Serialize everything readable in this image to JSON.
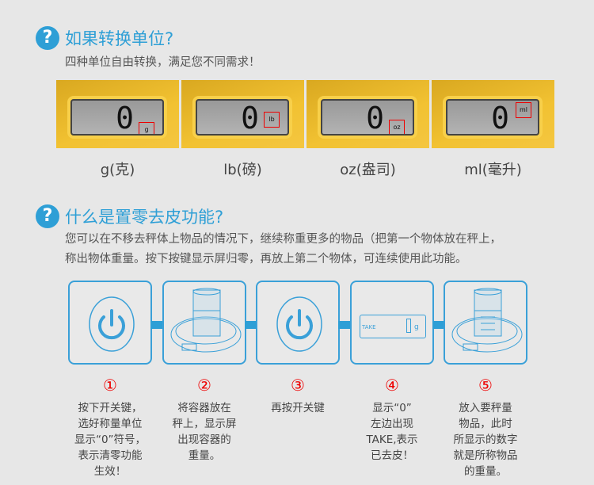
{
  "section1": {
    "icon": "question-icon",
    "title": "如果转换单位?",
    "subtitle": "四种单位自由转换，满足您不同需求！",
    "panels": [
      {
        "digit": "0",
        "unit": "g",
        "label": "g(克)"
      },
      {
        "digit": "0",
        "unit": "lb",
        "label": "lb(磅)"
      },
      {
        "digit": "0",
        "unit": "oz",
        "label": "oz(盎司)"
      },
      {
        "digit": "0",
        "unit": "ml",
        "label": "ml(毫升)"
      }
    ]
  },
  "section2": {
    "icon": "question-icon",
    "title": "什么是置零去皮功能?",
    "lines": [
      "您可以在不移去秤体上物品的情况下，继续称重更多的物品（把第一个物体放在秤上，",
      "称出物体重量。按下按键显示屏归零，再放上第二个物体，可连续使用此功能。"
    ],
    "lcd_text": "TAKE",
    "lcd_unit": "g",
    "steps": [
      {
        "num": "①",
        "icon": "power-icon",
        "text": "按下开关键，\n选好称量单位\n显示“0”符号，\n表示清零功能\n生效！"
      },
      {
        "num": "②",
        "icon": "scale-with-container-icon",
        "text": "将容器放在\n秤上，显示屏\n出现容器的\n重量。"
      },
      {
        "num": "③",
        "icon": "power-icon",
        "text": "再按开关键"
      },
      {
        "num": "④",
        "icon": "lcd-display-icon",
        "text": "显示“0”\n左边出现\nTAKE,表示\n已去皮！"
      },
      {
        "num": "⑤",
        "icon": "scale-with-item-icon",
        "text": "放入要秤量\n物品，此时\n所显示的数字\n就是所称物品\n的重量。"
      }
    ]
  },
  "colors": {
    "accent": "#2e9fd6",
    "highlight": "#e00000",
    "panel": "#f2c232"
  }
}
